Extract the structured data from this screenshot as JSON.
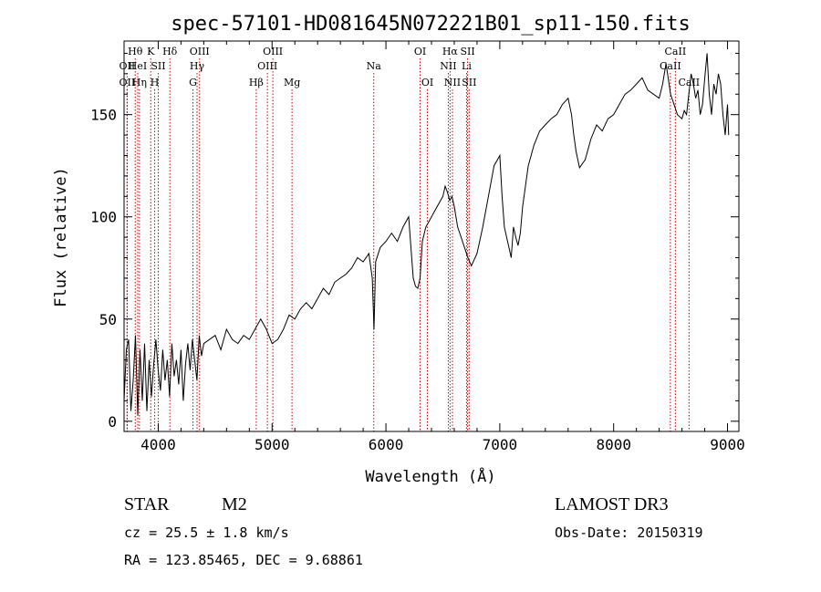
{
  "chart_data": {
    "type": "line",
    "title": "spec-57101-HD081645N072221B01_sp11-150.fits",
    "xlabel": "Wavelength (Å)",
    "ylabel": "Flux (relative)",
    "xlim": [
      3700,
      9100
    ],
    "ylim": [
      -5,
      186
    ],
    "x_ticks": [
      4000,
      5000,
      6000,
      7000,
      8000,
      9000
    ],
    "y_ticks": [
      0,
      50,
      100,
      150
    ],
    "grid": false,
    "series_color": "#000000",
    "line_marker_color": "#cc0000",
    "spectrum": {
      "x": [
        3700,
        3720,
        3740,
        3760,
        3780,
        3800,
        3820,
        3840,
        3860,
        3880,
        3900,
        3920,
        3940,
        3960,
        3980,
        4000,
        4020,
        4040,
        4060,
        4080,
        4100,
        4120,
        4140,
        4160,
        4180,
        4200,
        4220,
        4240,
        4260,
        4280,
        4300,
        4320,
        4340,
        4360,
        4380,
        4400,
        4450,
        4500,
        4550,
        4600,
        4650,
        4700,
        4750,
        4800,
        4850,
        4900,
        4950,
        5000,
        5050,
        5100,
        5150,
        5200,
        5250,
        5300,
        5350,
        5400,
        5450,
        5500,
        5550,
        5600,
        5650,
        5700,
        5750,
        5800,
        5850,
        5880,
        5895,
        5910,
        5950,
        6000,
        6050,
        6100,
        6150,
        6200,
        6220,
        6240,
        6260,
        6280,
        6300,
        6320,
        6350,
        6400,
        6450,
        6500,
        6520,
        6540,
        6560,
        6580,
        6600,
        6630,
        6660,
        6690,
        6720,
        6750,
        6800,
        6850,
        6900,
        6950,
        7000,
        7020,
        7040,
        7060,
        7080,
        7100,
        7120,
        7140,
        7160,
        7180,
        7200,
        7250,
        7300,
        7350,
        7400,
        7450,
        7500,
        7550,
        7600,
        7630,
        7650,
        7670,
        7700,
        7750,
        7800,
        7850,
        7900,
        7950,
        8000,
        8050,
        8100,
        8150,
        8200,
        8250,
        8300,
        8350,
        8400,
        8430,
        8460,
        8500,
        8530,
        8560,
        8600,
        8620,
        8640,
        8660,
        8680,
        8700,
        8720,
        8740,
        8760,
        8780,
        8800,
        8820,
        8840,
        8860,
        8880,
        8900,
        8920,
        8940,
        8960,
        8980,
        9000,
        9010
      ],
      "y": [
        10,
        35,
        40,
        5,
        20,
        42,
        3,
        35,
        10,
        38,
        5,
        30,
        12,
        28,
        40,
        25,
        15,
        35,
        20,
        30,
        12,
        38,
        22,
        30,
        18,
        35,
        10,
        28,
        38,
        25,
        40,
        30,
        20,
        42,
        32,
        38,
        40,
        42,
        35,
        45,
        40,
        38,
        42,
        40,
        45,
        50,
        45,
        38,
        40,
        45,
        52,
        50,
        55,
        58,
        55,
        60,
        65,
        62,
        68,
        70,
        72,
        75,
        80,
        78,
        82,
        70,
        45,
        78,
        85,
        88,
        92,
        88,
        95,
        100,
        85,
        70,
        66,
        65,
        70,
        88,
        95,
        100,
        105,
        110,
        115,
        112,
        108,
        110,
        105,
        95,
        90,
        85,
        80,
        76,
        82,
        95,
        110,
        125,
        130,
        110,
        95,
        90,
        85,
        80,
        95,
        90,
        86,
        92,
        105,
        125,
        135,
        142,
        145,
        148,
        150,
        155,
        158,
        150,
        140,
        132,
        124,
        128,
        138,
        145,
        142,
        148,
        150,
        155,
        160,
        162,
        165,
        168,
        162,
        160,
        158,
        165,
        175,
        160,
        155,
        150,
        148,
        152,
        150,
        160,
        170,
        165,
        158,
        162,
        150,
        155,
        168,
        180,
        160,
        150,
        165,
        160,
        170,
        165,
        150,
        140,
        155,
        140
      ]
    },
    "lines": [
      {
        "label": "Hθ",
        "x": 3798,
        "row": 0
      },
      {
        "label": "OII",
        "x": 3727,
        "row": 1
      },
      {
        "label": "OII",
        "x": 3727,
        "row": 2
      },
      {
        "label": "HeI",
        "x": 3820,
        "row": 1
      },
      {
        "label": "Hη",
        "x": 3835,
        "row": 2
      },
      {
        "label": "K",
        "x": 3934,
        "row": 0
      },
      {
        "label": "SII",
        "x": 4000,
        "row": 1
      },
      {
        "label": "H",
        "x": 3969,
        "row": 2
      },
      {
        "label": "Hδ",
        "x": 4102,
        "row": 0
      },
      {
        "label": "OIII",
        "x": 4363,
        "row": 0
      },
      {
        "label": "Hγ",
        "x": 4341,
        "row": 1
      },
      {
        "label": "G",
        "x": 4305,
        "row": 2
      },
      {
        "label": "OIII",
        "x": 5007,
        "row": 0
      },
      {
        "label": "OIII",
        "x": 4959,
        "row": 1
      },
      {
        "label": "Hβ",
        "x": 4861,
        "row": 2
      },
      {
        "label": "Mg",
        "x": 5175,
        "row": 2
      },
      {
        "label": "Na",
        "x": 5893,
        "row": 1
      },
      {
        "label": "OI",
        "x": 6300,
        "row": 0
      },
      {
        "label": "OI",
        "x": 6364,
        "row": 2
      },
      {
        "label": "Hα",
        "x": 6563,
        "row": 0
      },
      {
        "label": "NII",
        "x": 6548,
        "row": 1
      },
      {
        "label": "NII",
        "x": 6584,
        "row": 2
      },
      {
        "label": "SII",
        "x": 6717,
        "row": 0
      },
      {
        "label": "Li",
        "x": 6708,
        "row": 1
      },
      {
        "label": "SII",
        "x": 6731,
        "row": 2
      },
      {
        "label": "CaII",
        "x": 8542,
        "row": 0
      },
      {
        "label": "CaII",
        "x": 8498,
        "row": 1
      },
      {
        "label": "CaII",
        "x": 8662,
        "row": 2
      }
    ]
  },
  "info": {
    "object_class": "STAR",
    "subclass": "M2",
    "survey": "LAMOST DR3",
    "redshift": "cz = 25.5 ± 1.8 km/s",
    "obs_date": "Obs-Date: 20150319",
    "coords": "RA = 123.85465, DEC =   9.68861"
  }
}
